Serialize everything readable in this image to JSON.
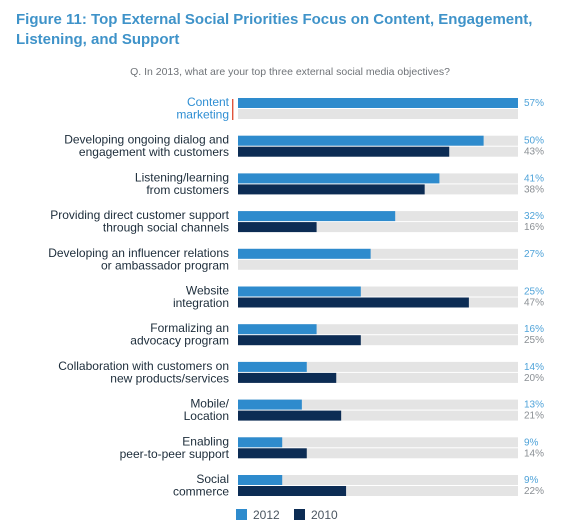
{
  "header": {
    "title": "Figure 11: Top External Social Priorities Focus on Content, Engagement, Listening, and Support",
    "question": "Q. In 2013, what are your top three external social media objectives?"
  },
  "colors": {
    "series_2012": "#2e8bcd",
    "series_2010": "#0c2c54",
    "track": "#e4e4e4",
    "label_2012": "#4fa3d9",
    "label_2010": "#8a8f94",
    "highlight_label": "#2e8ed3",
    "highlight_marker": "#e0553b"
  },
  "chart_data": {
    "type": "bar",
    "orientation": "horizontal",
    "categories": [
      [
        "Content",
        "marketing"
      ],
      [
        "Developing ongoing dialog and",
        "engagement with customers"
      ],
      [
        "Listening/learning",
        "from customers"
      ],
      [
        "Providing direct customer support",
        "through social channels"
      ],
      [
        "Developing an influencer relations",
        "or ambassador program"
      ],
      [
        "Website",
        "integration"
      ],
      [
        "Formalizing an",
        "advocacy program"
      ],
      [
        "Collaboration with customers on",
        "new products/services"
      ],
      [
        "Mobile/",
        "Location"
      ],
      [
        "Enabling",
        "peer-to-peer support"
      ],
      [
        "Social",
        "commerce"
      ]
    ],
    "series": [
      {
        "name": "2012",
        "values": [
          57,
          50,
          41,
          32,
          27,
          25,
          16,
          14,
          13,
          9,
          9
        ],
        "labels": [
          "57%",
          "50%",
          "41%",
          "32%",
          "27%",
          "25%",
          "16%",
          "14%",
          "13%",
          "9%",
          "9%"
        ]
      },
      {
        "name": "2010",
        "values": [
          null,
          43,
          38,
          16,
          null,
          47,
          25,
          20,
          21,
          14,
          22
        ],
        "labels": [
          null,
          "43%",
          "38%",
          "16%",
          null,
          "47%",
          "25%",
          "20%",
          "21%",
          "14%",
          "22%"
        ]
      }
    ],
    "xlim": [
      0,
      57
    ],
    "highlight_category": 0,
    "legend": {
      "position": "bottom-center",
      "entries": [
        "2012",
        "2010"
      ]
    }
  }
}
